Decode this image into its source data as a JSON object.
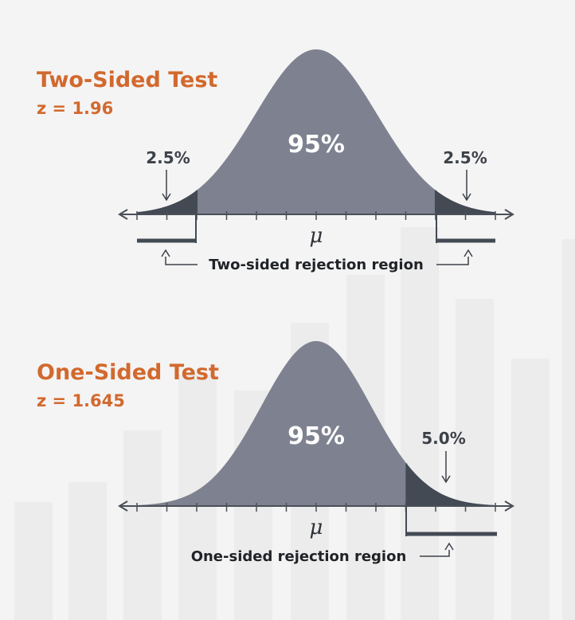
{
  "colors": {
    "background": "#f4f4f4",
    "bg_bars": "#ececec",
    "curve_fill": "#7e8290",
    "tail_fill": "#434a54",
    "accent": "#d2692e",
    "text_dark": "#3d4148",
    "axis": "#4a4f58",
    "center_label": "#ffffff"
  },
  "panels": [
    {
      "title": "Two-Sided Test",
      "z_label": "z = 1.96",
      "center_label": "95%",
      "mean_symbol": "μ",
      "left_tail_label": "2.5%",
      "right_tail_label": "2.5%",
      "region_label": "Two-sided rejection region",
      "z_critical": 1.96,
      "tails": "two"
    },
    {
      "title": "One-Sided Test",
      "z_label": "z = 1.645",
      "center_label": "95%",
      "mean_symbol": "μ",
      "right_tail_label": "5.0%",
      "region_label": "One-sided rejection region",
      "z_critical": 1.645,
      "tails": "right"
    }
  ]
}
